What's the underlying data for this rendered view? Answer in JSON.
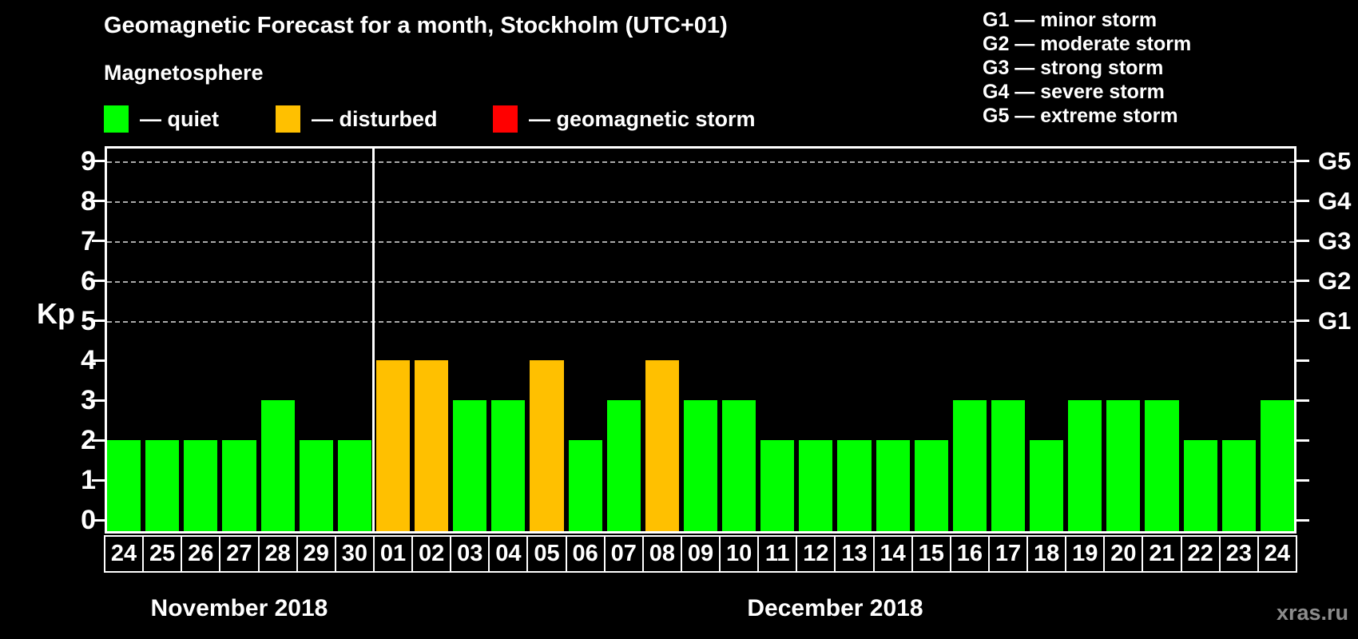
{
  "header": {
    "title": "Geomagnetic Forecast for a month, Stockholm (UTC+01)",
    "subtitle": "Magnetosphere"
  },
  "legend": {
    "items": [
      {
        "label": "— quiet",
        "status": "quiet",
        "color": "#00FF00",
        "x": 130
      },
      {
        "label": "— disturbed",
        "status": "disturbed",
        "color": "#FFC000",
        "x": 345
      },
      {
        "label": "— geomagnetic storm",
        "status": "storm",
        "color": "#FF0000",
        "x": 617
      }
    ]
  },
  "g_legend": {
    "items": [
      "G1 — minor storm",
      "G2 — moderate storm",
      "G3 — strong storm",
      "G4 — severe storm",
      "G5 — extreme storm"
    ]
  },
  "watermark": "xras.ru",
  "chart_data": {
    "type": "bar",
    "title": "Geomagnetic Forecast for a month, Stockholm (UTC+01)",
    "subtitle": "Magnetosphere",
    "ylabel": "Kp",
    "ylim": [
      0,
      9.4
    ],
    "yticks": [
      0,
      1,
      2,
      3,
      4,
      5,
      6,
      7,
      8,
      9
    ],
    "gridlines_at_kp": [
      5,
      6,
      7,
      8,
      9
    ],
    "grid": "dashed horizontal lines at storm levels only",
    "legend_position": "top",
    "right_axis": [
      {
        "kp": 5,
        "label": "G1"
      },
      {
        "kp": 6,
        "label": "G2"
      },
      {
        "kp": 7,
        "label": "G3"
      },
      {
        "kp": 8,
        "label": "G4"
      },
      {
        "kp": 9,
        "label": "G5"
      }
    ],
    "status_colors": {
      "quiet": "#00FF00",
      "disturbed": "#FFC000",
      "storm": "#FF0000"
    },
    "month_groups": [
      {
        "label": "November 2018",
        "days": 7
      },
      {
        "label": "December 2018",
        "days": 24
      }
    ],
    "points": [
      {
        "month": "November 2018",
        "day": "24",
        "kp": 2,
        "status": "quiet"
      },
      {
        "month": "November 2018",
        "day": "25",
        "kp": 2,
        "status": "quiet"
      },
      {
        "month": "November 2018",
        "day": "26",
        "kp": 2,
        "status": "quiet"
      },
      {
        "month": "November 2018",
        "day": "27",
        "kp": 2,
        "status": "quiet"
      },
      {
        "month": "November 2018",
        "day": "28",
        "kp": 3,
        "status": "quiet"
      },
      {
        "month": "November 2018",
        "day": "29",
        "kp": 2,
        "status": "quiet"
      },
      {
        "month": "November 2018",
        "day": "30",
        "kp": 2,
        "status": "quiet"
      },
      {
        "month": "December 2018",
        "day": "01",
        "kp": 4,
        "status": "disturbed"
      },
      {
        "month": "December 2018",
        "day": "02",
        "kp": 4,
        "status": "disturbed"
      },
      {
        "month": "December 2018",
        "day": "03",
        "kp": 3,
        "status": "quiet"
      },
      {
        "month": "December 2018",
        "day": "04",
        "kp": 3,
        "status": "quiet"
      },
      {
        "month": "December 2018",
        "day": "05",
        "kp": 4,
        "status": "disturbed"
      },
      {
        "month": "December 2018",
        "day": "06",
        "kp": 2,
        "status": "quiet"
      },
      {
        "month": "December 2018",
        "day": "07",
        "kp": 3,
        "status": "quiet"
      },
      {
        "month": "December 2018",
        "day": "08",
        "kp": 4,
        "status": "disturbed"
      },
      {
        "month": "December 2018",
        "day": "09",
        "kp": 3,
        "status": "quiet"
      },
      {
        "month": "December 2018",
        "day": "10",
        "kp": 3,
        "status": "quiet"
      },
      {
        "month": "December 2018",
        "day": "11",
        "kp": 2,
        "status": "quiet"
      },
      {
        "month": "December 2018",
        "day": "12",
        "kp": 2,
        "status": "quiet"
      },
      {
        "month": "December 2018",
        "day": "13",
        "kp": 2,
        "status": "quiet"
      },
      {
        "month": "December 2018",
        "day": "14",
        "kp": 2,
        "status": "quiet"
      },
      {
        "month": "December 2018",
        "day": "15",
        "kp": 2,
        "status": "quiet"
      },
      {
        "month": "December 2018",
        "day": "16",
        "kp": 3,
        "status": "quiet"
      },
      {
        "month": "December 2018",
        "day": "17",
        "kp": 3,
        "status": "quiet"
      },
      {
        "month": "December 2018",
        "day": "18",
        "kp": 2,
        "status": "quiet"
      },
      {
        "month": "December 2018",
        "day": "19",
        "kp": 3,
        "status": "quiet"
      },
      {
        "month": "December 2018",
        "day": "20",
        "kp": 3,
        "status": "quiet"
      },
      {
        "month": "December 2018",
        "day": "21",
        "kp": 3,
        "status": "quiet"
      },
      {
        "month": "December 2018",
        "day": "22",
        "kp": 2,
        "status": "quiet"
      },
      {
        "month": "December 2018",
        "day": "23",
        "kp": 2,
        "status": "quiet"
      },
      {
        "month": "December 2018",
        "day": "24",
        "kp": 3,
        "status": "quiet"
      }
    ]
  }
}
